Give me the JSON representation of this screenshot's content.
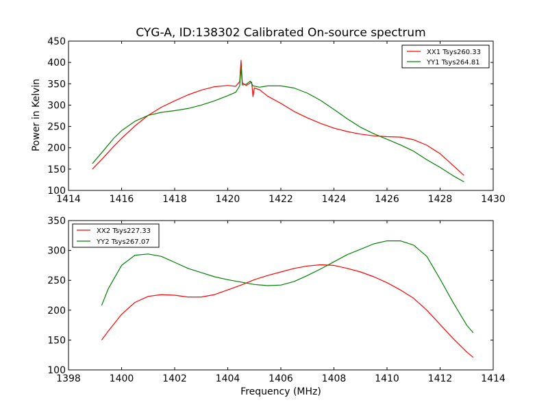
{
  "chart_data": [
    {
      "type": "line",
      "title": "CYG-A, ID:138302 Calibrated On-source spectrum",
      "ylabel": "Power in Kelvin",
      "xlabel": "",
      "xlim": [
        1414,
        1430
      ],
      "ylim": [
        100,
        450
      ],
      "xticks": [
        1414,
        1416,
        1418,
        1420,
        1422,
        1424,
        1426,
        1428,
        1430
      ],
      "yticks": [
        100,
        150,
        200,
        250,
        300,
        350,
        400,
        450
      ],
      "legend": "top-right",
      "series": [
        {
          "name": "XX1 Tsys260.33",
          "color": "#ff0000",
          "x": [
            1414.9,
            1415.3,
            1415.7,
            1416.0,
            1416.5,
            1417.0,
            1417.5,
            1418.0,
            1418.5,
            1419.0,
            1419.5,
            1420.0,
            1420.3,
            1420.45,
            1420.5,
            1420.55,
            1420.7,
            1420.9,
            1420.95,
            1421.0,
            1421.2,
            1421.5,
            1422.0,
            1422.5,
            1423.0,
            1423.5,
            1424.0,
            1424.5,
            1425.0,
            1425.5,
            1426.0,
            1426.5,
            1427.0,
            1427.5,
            1428.0,
            1428.5,
            1428.9
          ],
          "y": [
            150,
            176,
            203,
            222,
            251,
            276,
            295,
            310,
            324,
            335,
            343,
            346,
            344,
            355,
            405,
            352,
            346,
            354,
            320,
            340,
            336,
            321,
            304,
            285,
            270,
            257,
            246,
            238,
            232,
            228,
            226,
            225,
            219,
            206,
            186,
            158,
            135
          ]
        },
        {
          "name": "YY1 Tsys264.81",
          "color": "#008000",
          "x": [
            1414.9,
            1415.3,
            1415.7,
            1416.0,
            1416.5,
            1417.0,
            1417.5,
            1418.0,
            1418.5,
            1419.0,
            1419.5,
            1420.0,
            1420.3,
            1420.45,
            1420.5,
            1420.55,
            1420.7,
            1420.85,
            1420.95,
            1421.2,
            1421.5,
            1422.0,
            1422.5,
            1423.0,
            1423.5,
            1424.0,
            1424.5,
            1425.0,
            1425.5,
            1426.0,
            1426.5,
            1427.0,
            1427.5,
            1428.0,
            1428.5,
            1428.9
          ],
          "y": [
            163,
            192,
            222,
            240,
            262,
            276,
            283,
            287,
            292,
            300,
            310,
            322,
            330,
            345,
            390,
            347,
            349,
            356,
            345,
            342,
            345,
            345,
            340,
            328,
            311,
            290,
            268,
            248,
            233,
            220,
            207,
            192,
            172,
            154,
            134,
            120
          ]
        }
      ]
    },
    {
      "type": "line",
      "title": "",
      "ylabel": "",
      "xlabel": "Frequency (MHz)",
      "xlim": [
        1398,
        1414
      ],
      "ylim": [
        100,
        350
      ],
      "xticks": [
        1398,
        1400,
        1402,
        1404,
        1406,
        1408,
        1410,
        1412,
        1414
      ],
      "yticks": [
        100,
        150,
        200,
        250,
        300,
        350
      ],
      "legend": "top-left",
      "series": [
        {
          "name": "XX2 Tsys227.33",
          "color": "#ff0000",
          "x": [
            1399.25,
            1399.5,
            1400.0,
            1400.5,
            1401.0,
            1401.5,
            1402.0,
            1402.5,
            1403.0,
            1403.5,
            1404.0,
            1404.5,
            1405.0,
            1405.5,
            1406.0,
            1406.5,
            1407.0,
            1407.5,
            1408.0,
            1408.5,
            1409.0,
            1409.5,
            1410.0,
            1410.5,
            1411.0,
            1411.5,
            1412.0,
            1412.5,
            1413.0,
            1413.25
          ],
          "y": [
            150,
            165,
            193,
            213,
            223,
            226,
            225,
            222,
            222,
            226,
            234,
            242,
            251,
            258,
            264,
            270,
            274,
            276,
            275,
            270,
            264,
            256,
            246,
            234,
            220,
            200,
            176,
            152,
            130,
            121
          ]
        },
        {
          "name": "YY2 Tsys267.07",
          "color": "#008000",
          "x": [
            1399.25,
            1399.5,
            1400.0,
            1400.5,
            1401.0,
            1401.5,
            1402.0,
            1402.5,
            1403.0,
            1403.5,
            1404.0,
            1404.5,
            1405.0,
            1405.5,
            1406.0,
            1406.5,
            1407.0,
            1407.5,
            1408.0,
            1408.5,
            1409.0,
            1409.5,
            1410.0,
            1410.5,
            1411.0,
            1411.5,
            1412.0,
            1412.5,
            1413.0,
            1413.25
          ],
          "y": [
            208,
            236,
            275,
            292,
            294,
            290,
            280,
            270,
            263,
            256,
            251,
            247,
            243,
            241,
            242,
            248,
            258,
            269,
            281,
            293,
            302,
            311,
            316,
            316,
            309,
            290,
            252,
            212,
            175,
            162
          ]
        }
      ]
    }
  ]
}
